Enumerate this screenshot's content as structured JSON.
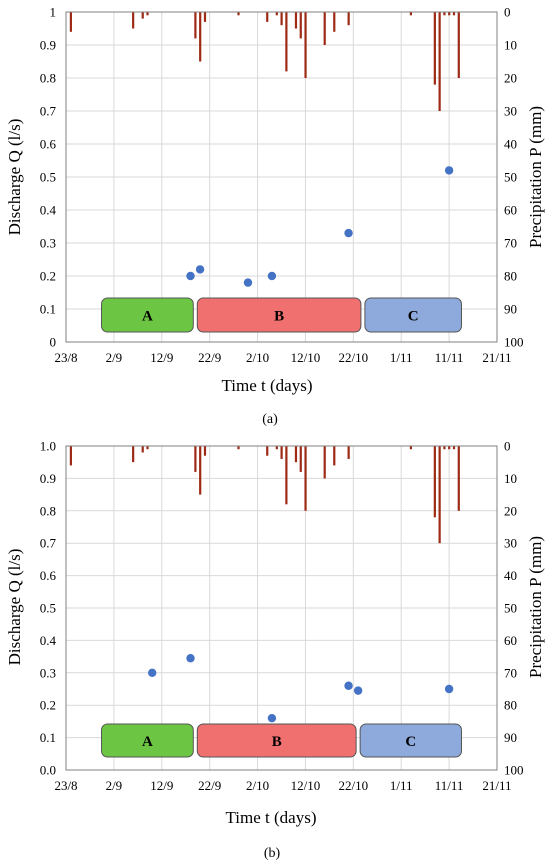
{
  "chart_data": [
    {
      "type": "scatter",
      "subplot_label": "(a)",
      "xlabel": "Time t (days)",
      "ylabel": "Discharge Q (l/s)",
      "y2label": "Precipitation P (mm)",
      "xlim": [
        "2022-08-23",
        "2022-11-21"
      ],
      "xticks": [
        "23/8",
        "2/9",
        "12/9",
        "22/9",
        "2/10",
        "12/10",
        "22/10",
        "1/11",
        "11/11",
        "21/11"
      ],
      "ylim": [
        0,
        1
      ],
      "yticks": [
        "0",
        "0.1",
        "0.2",
        "0.3",
        "0.4",
        "0.5",
        "0.6",
        "0.7",
        "0.8",
        "0.9",
        "1"
      ],
      "y2lim": [
        0,
        100
      ],
      "y2_inverted": true,
      "y2ticks": [
        "0",
        "10",
        "20",
        "30",
        "40",
        "50",
        "60",
        "70",
        "80",
        "90",
        "100"
      ],
      "grid": true,
      "colors": {
        "discharge": "#4472C4",
        "precipitation": "#9E2A16"
      },
      "periods": [
        {
          "label": "A",
          "start": "2022-08-30",
          "end": "2022-09-19",
          "color": "#6CC644"
        },
        {
          "label": "B",
          "start": "2022-09-19",
          "end": "2022-10-24",
          "color": "#F07070"
        },
        {
          "label": "C",
          "start": "2022-10-24",
          "end": "2022-11-14",
          "color": "#8EA9DB"
        }
      ],
      "discharge": [
        {
          "x": "2022-09-18",
          "y": 0.2
        },
        {
          "x": "2022-09-20",
          "y": 0.22
        },
        {
          "x": "2022-09-30",
          "y": 0.18
        },
        {
          "x": "2022-10-05",
          "y": 0.2
        },
        {
          "x": "2022-10-21",
          "y": 0.33
        },
        {
          "x": "2022-11-11",
          "y": 0.52
        }
      ],
      "precipitation": [
        {
          "x": "2022-08-24",
          "y": 6
        },
        {
          "x": "2022-09-06",
          "y": 5
        },
        {
          "x": "2022-09-08",
          "y": 2
        },
        {
          "x": "2022-09-09",
          "y": 1
        },
        {
          "x": "2022-09-19",
          "y": 8
        },
        {
          "x": "2022-09-20",
          "y": 15
        },
        {
          "x": "2022-09-21",
          "y": 3
        },
        {
          "x": "2022-09-28",
          "y": 1
        },
        {
          "x": "2022-10-04",
          "y": 3
        },
        {
          "x": "2022-10-06",
          "y": 1
        },
        {
          "x": "2022-10-07",
          "y": 4
        },
        {
          "x": "2022-10-08",
          "y": 18
        },
        {
          "x": "2022-10-10",
          "y": 5
        },
        {
          "x": "2022-10-11",
          "y": 8
        },
        {
          "x": "2022-10-12",
          "y": 20
        },
        {
          "x": "2022-10-16",
          "y": 10
        },
        {
          "x": "2022-10-18",
          "y": 6
        },
        {
          "x": "2022-10-21",
          "y": 4
        },
        {
          "x": "2022-11-03",
          "y": 1
        },
        {
          "x": "2022-11-08",
          "y": 22
        },
        {
          "x": "2022-11-09",
          "y": 30
        },
        {
          "x": "2022-11-10",
          "y": 1
        },
        {
          "x": "2022-11-11",
          "y": 1
        },
        {
          "x": "2022-11-12",
          "y": 1
        },
        {
          "x": "2022-11-13",
          "y": 20
        }
      ]
    },
    {
      "type": "scatter",
      "subplot_label": "(b)",
      "xlabel": "Time t (days)",
      "ylabel": "Discharge Q (l/s)",
      "y2label": "Precipitation P (mm)",
      "xlim": [
        "2022-08-23",
        "2022-11-21"
      ],
      "xticks": [
        "23/8",
        "2/9",
        "12/9",
        "22/9",
        "2/10",
        "12/10",
        "22/10",
        "1/11",
        "11/11",
        "21/11"
      ],
      "ylim": [
        0,
        1
      ],
      "yticks": [
        "0.0",
        "0.1",
        "0.2",
        "0.3",
        "0.4",
        "0.5",
        "0.6",
        "0.7",
        "0.8",
        "0.9",
        "1.0"
      ],
      "y2lim": [
        0,
        100
      ],
      "y2_inverted": true,
      "y2ticks": [
        "0",
        "10",
        "20",
        "30",
        "40",
        "50",
        "60",
        "70",
        "80",
        "90",
        "100"
      ],
      "grid": true,
      "colors": {
        "discharge": "#4472C4",
        "precipitation": "#9E2A16"
      },
      "periods": [
        {
          "label": "A",
          "start": "2022-08-30",
          "end": "2022-09-19",
          "color": "#6CC644"
        },
        {
          "label": "B",
          "start": "2022-09-19",
          "end": "2022-10-23",
          "color": "#F07070"
        },
        {
          "label": "C",
          "start": "2022-10-23",
          "end": "2022-11-14",
          "color": "#8EA9DB"
        }
      ],
      "discharge": [
        {
          "x": "2022-09-10",
          "y": 0.3
        },
        {
          "x": "2022-09-18",
          "y": 0.345
        },
        {
          "x": "2022-10-05",
          "y": 0.16
        },
        {
          "x": "2022-10-21",
          "y": 0.26
        },
        {
          "x": "2022-10-23",
          "y": 0.245
        },
        {
          "x": "2022-11-11",
          "y": 0.25
        }
      ],
      "precipitation": [
        {
          "x": "2022-08-24",
          "y": 6
        },
        {
          "x": "2022-09-06",
          "y": 5
        },
        {
          "x": "2022-09-08",
          "y": 2
        },
        {
          "x": "2022-09-09",
          "y": 1
        },
        {
          "x": "2022-09-19",
          "y": 8
        },
        {
          "x": "2022-09-20",
          "y": 15
        },
        {
          "x": "2022-09-21",
          "y": 3
        },
        {
          "x": "2022-09-28",
          "y": 1
        },
        {
          "x": "2022-10-04",
          "y": 3
        },
        {
          "x": "2022-10-06",
          "y": 1
        },
        {
          "x": "2022-10-07",
          "y": 4
        },
        {
          "x": "2022-10-08",
          "y": 18
        },
        {
          "x": "2022-10-10",
          "y": 5
        },
        {
          "x": "2022-10-11",
          "y": 8
        },
        {
          "x": "2022-10-12",
          "y": 20
        },
        {
          "x": "2022-10-16",
          "y": 10
        },
        {
          "x": "2022-10-18",
          "y": 6
        },
        {
          "x": "2022-10-21",
          "y": 4
        },
        {
          "x": "2022-11-03",
          "y": 1
        },
        {
          "x": "2022-11-08",
          "y": 22
        },
        {
          "x": "2022-11-09",
          "y": 30
        },
        {
          "x": "2022-11-10",
          "y": 1
        },
        {
          "x": "2022-11-11",
          "y": 1
        },
        {
          "x": "2022-11-12",
          "y": 1
        },
        {
          "x": "2022-11-13",
          "y": 20
        }
      ]
    }
  ]
}
